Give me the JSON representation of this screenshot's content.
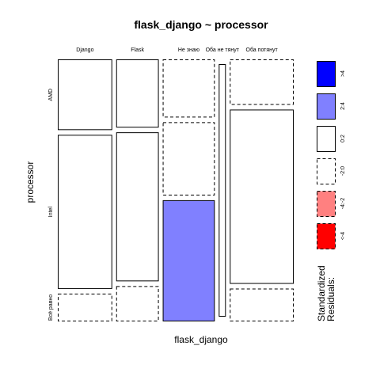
{
  "chart_data": {
    "type": "mosaic",
    "title": "flask_django ~ processor",
    "xlabel": "flask_django",
    "ylabel": "processor",
    "columns": [
      "Django",
      "Flask",
      "Не знаю",
      "Оба не тянут",
      "Оба потянут"
    ],
    "column_widths": [
      0.23,
      0.18,
      0.22,
      0.03,
      0.27
    ],
    "rows": [
      "AMD",
      "Intel",
      "Всё равно"
    ],
    "cells": [
      {
        "column": "Django",
        "shares": [
          0.28,
          0.61,
          0.11
        ],
        "residual_class": [
          "0:2",
          "0:2",
          "-2:0"
        ]
      },
      {
        "column": "Flask",
        "shares": [
          0.27,
          0.59,
          0.14
        ],
        "residual_class": [
          "0:2",
          "0:2",
          "-2:0"
        ]
      },
      {
        "column": "Не знаю",
        "shares": [
          0.23,
          0.29,
          0.48
        ],
        "residual_class": [
          "-2:0",
          "-2:0",
          "2:4"
        ]
      },
      {
        "column": "Оба не тянут",
        "shares": [
          0.0,
          1.0,
          0.0
        ],
        "residual_class": [
          "0:2",
          "0:2",
          "0:2"
        ]
      },
      {
        "column": "Оба потянут",
        "shares": [
          0.18,
          0.69,
          0.13
        ],
        "residual_class": [
          "-2:0",
          "0:2",
          "-2:0"
        ]
      }
    ],
    "legend": {
      "title": "Standardized Residuals:",
      "position": "right",
      "items": [
        {
          "label": ">4",
          "fill": "#0000FF",
          "border": "solid"
        },
        {
          "label": "2:4",
          "fill": "#8080FF",
          "border": "solid"
        },
        {
          "label": "0:2",
          "fill": "#FFFFFF",
          "border": "solid"
        },
        {
          "label": "-2:0",
          "fill": "#FFFFFF",
          "border": "dashed"
        },
        {
          "label": "-4:-2",
          "fill": "#FF8080",
          "border": "dashed"
        },
        {
          "label": "<-4",
          "fill": "#FF0000",
          "border": "dashed"
        }
      ]
    }
  }
}
